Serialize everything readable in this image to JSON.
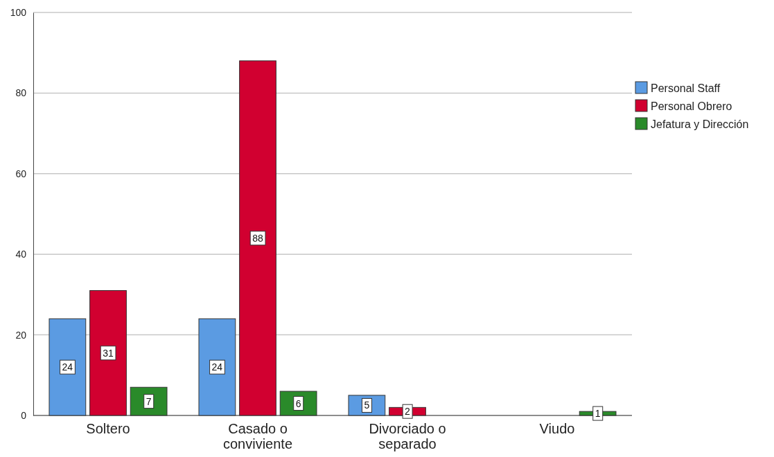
{
  "chart_data": {
    "type": "bar",
    "categories": [
      "Soltero",
      "Casado o conviviente",
      "Divorciado o separado",
      "Viudo"
    ],
    "series": [
      {
        "name": "Personal Staff",
        "color": "#5b9be2",
        "values": [
          24,
          24,
          5,
          null
        ]
      },
      {
        "name": "Personal Obrero",
        "color": "#d10030",
        "values": [
          31,
          88,
          2,
          null
        ]
      },
      {
        "name": "Jefatura y Dirección",
        "color": "#2a8a2a",
        "values": [
          7,
          6,
          null,
          1
        ]
      }
    ],
    "ylim": [
      0,
      100
    ],
    "yticks": [
      0,
      20,
      40,
      60,
      80,
      100
    ],
    "grid": "y",
    "legend": "right",
    "data_labels": true
  }
}
